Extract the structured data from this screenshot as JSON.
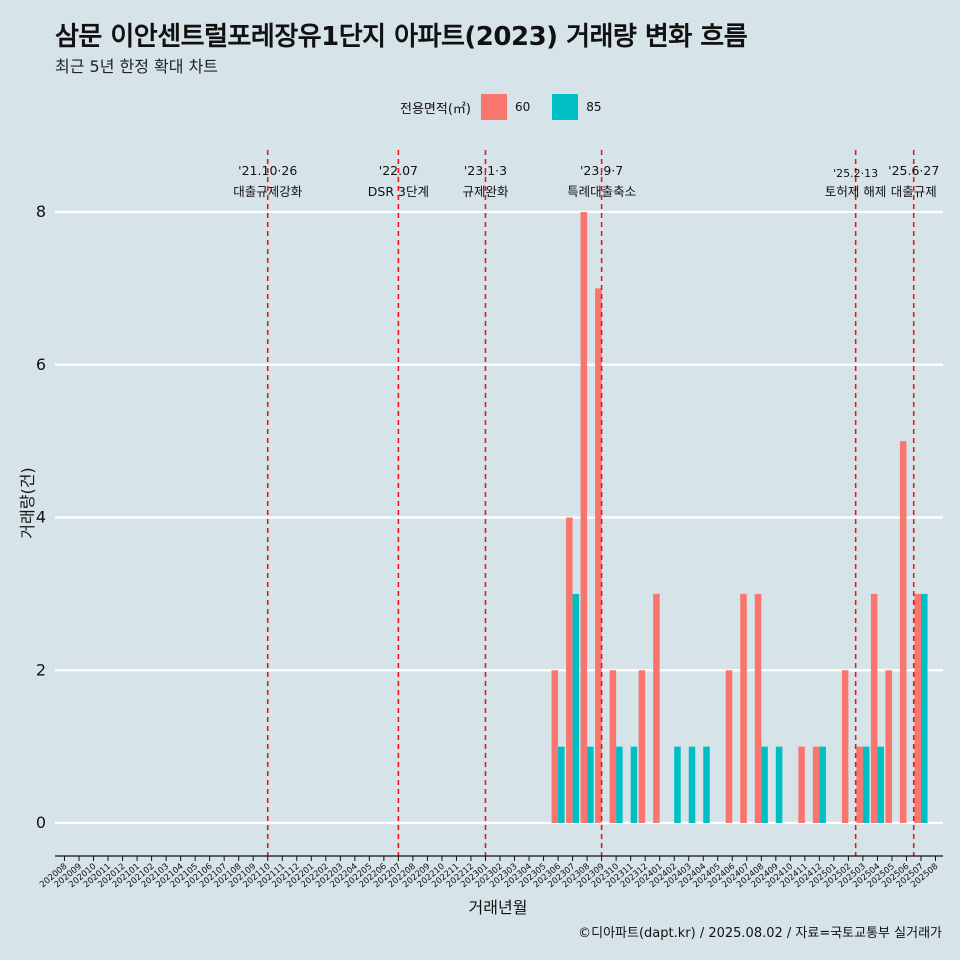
{
  "title": "삼문 이안센트럴포레장유1단지 아파트(2023) 거래량 변화 흐름",
  "subtitle": "최근 5년 한정 확대 차트",
  "caption": "©디아파트(dapt.kr) / 2025.08.02 / 자료=국토교통부 실거래가",
  "legend": {
    "title": "전용면적(㎡)",
    "items": [
      {
        "label": "60",
        "color": "#f8766d"
      },
      {
        "label": "85",
        "color": "#00bfc4"
      }
    ]
  },
  "chart_data": {
    "type": "bar",
    "xlabel": "거래년월",
    "ylabel": "거래량(건)",
    "ylim": [
      0,
      8.8
    ],
    "yticks": [
      0,
      2,
      4,
      6,
      8
    ],
    "grid": "horizontal",
    "legend_position": "top",
    "categories": [
      "202008",
      "202009",
      "202010",
      "202011",
      "202012",
      "202101",
      "202102",
      "202103",
      "202104",
      "202105",
      "202106",
      "202107",
      "202108",
      "202109",
      "202110",
      "202111",
      "202112",
      "202201",
      "202202",
      "202203",
      "202204",
      "202205",
      "202206",
      "202207",
      "202208",
      "202209",
      "202210",
      "202211",
      "202212",
      "202301",
      "202302",
      "202303",
      "202304",
      "202305",
      "202306",
      "202307",
      "202308",
      "202309",
      "202310",
      "202311",
      "202312",
      "202401",
      "202402",
      "202403",
      "202404",
      "202405",
      "202406",
      "202407",
      "202408",
      "202409",
      "202410",
      "202411",
      "202412",
      "202501",
      "202502",
      "202503",
      "202504",
      "202505",
      "202506",
      "202507",
      "202508"
    ],
    "series": [
      {
        "name": "60",
        "color": "#f8766d",
        "values": [
          0,
          0,
          0,
          0,
          0,
          0,
          0,
          0,
          0,
          0,
          0,
          0,
          0,
          0,
          0,
          0,
          0,
          0,
          0,
          0,
          0,
          0,
          0,
          0,
          0,
          0,
          0,
          0,
          0,
          0,
          0,
          0,
          0,
          0,
          2,
          4,
          8,
          7,
          2,
          0,
          2,
          3,
          0,
          0,
          0,
          0,
          2,
          3,
          3,
          0,
          0,
          1,
          1,
          0,
          2,
          1,
          3,
          2,
          5,
          3,
          0
        ]
      },
      {
        "name": "85",
        "color": "#00bfc4",
        "values": [
          0,
          0,
          0,
          0,
          0,
          0,
          0,
          0,
          0,
          0,
          0,
          0,
          0,
          0,
          0,
          0,
          0,
          0,
          0,
          0,
          0,
          0,
          0,
          0,
          0,
          0,
          0,
          0,
          0,
          0,
          0,
          0,
          0,
          0,
          1,
          3,
          1,
          0,
          1,
          1,
          0,
          0,
          1,
          1,
          1,
          0,
          0,
          0,
          1,
          1,
          0,
          0,
          1,
          0,
          0,
          1,
          1,
          0,
          0,
          3,
          0
        ]
      }
    ],
    "events": [
      {
        "date": "'21.10·26",
        "label": "대출규제강화",
        "index": 14
      },
      {
        "date": "'22.07",
        "label": "DSR 3단계",
        "index": 23
      },
      {
        "date": "'23.1·3",
        "label": "규제완화",
        "index": 29
      },
      {
        "date": "'23.9·7",
        "label": "특례대출축소",
        "index": 37
      },
      {
        "date": "'25.2·13",
        "label": "토허제 해제",
        "index": 54.5
      },
      {
        "date": "'25.6·27",
        "label": "대출규제",
        "index": 58.5
      }
    ]
  }
}
